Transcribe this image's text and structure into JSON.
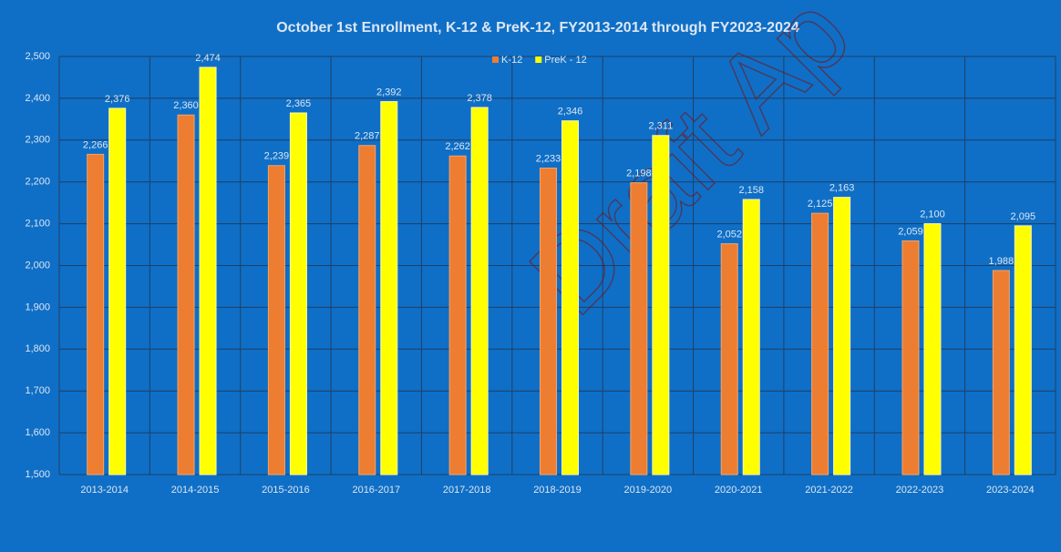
{
  "chart_data": {
    "type": "bar",
    "title": "October 1st Enrollment, K-12 & PreK-12, FY2013-2014 through FY2023-2024",
    "watermark": "Draft Ap",
    "categories": [
      "2013-2014",
      "2014-2015",
      "2015-2016",
      "2016-2017",
      "2017-2018",
      "2018-2019",
      "2019-2020",
      "2020-2021",
      "2021-2022",
      "2022-2023",
      "2023-2024"
    ],
    "series": [
      {
        "name": "K-12",
        "color": "#ed7d31",
        "values": [
          2266,
          2360,
          2239,
          2287,
          2262,
          2233,
          2198,
          2052,
          2125,
          2059,
          1988
        ],
        "value_labels": [
          "2,266",
          "2,360",
          "2,239",
          "2,287",
          "2,262",
          "2,233",
          "2,198",
          "2,052",
          "2,125",
          "2,059",
          "1,988"
        ]
      },
      {
        "name": "PreK - 12",
        "color": "#ffff00",
        "values": [
          2376,
          2474,
          2365,
          2392,
          2378,
          2346,
          2311,
          2158,
          2163,
          2100,
          2095
        ],
        "value_labels": [
          "2,376",
          "2,474",
          "2,365",
          "2,392",
          "2,378",
          "2,346",
          "2,311",
          "2,158",
          "2,163",
          "2,100",
          "2,095"
        ]
      }
    ],
    "ylim": [
      1500,
      2500
    ],
    "yticks": [
      {
        "value": 1500,
        "label": "1,500"
      },
      {
        "value": 1600,
        "label": "1,600"
      },
      {
        "value": 1700,
        "label": "1,700"
      },
      {
        "value": 1800,
        "label": "1,800"
      },
      {
        "value": 1900,
        "label": "1,900"
      },
      {
        "value": 2000,
        "label": "2,000"
      },
      {
        "value": 2100,
        "label": "2,100"
      },
      {
        "value": 2200,
        "label": "2,200"
      },
      {
        "value": 2300,
        "label": "2,300"
      },
      {
        "value": 2400,
        "label": "2,400"
      },
      {
        "value": 2500,
        "label": "2,500"
      }
    ],
    "grid": true,
    "legend": "top"
  }
}
